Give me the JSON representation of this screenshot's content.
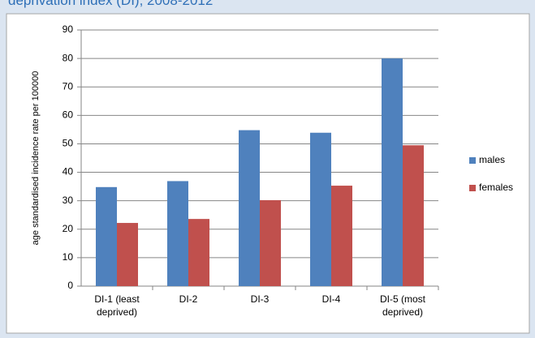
{
  "chart_data": {
    "type": "bar",
    "title": "deprivation index (DI), 2008-2012",
    "y_label": "age standardised incidence rate per 100000",
    "categories": [
      "DI-1 (least\ndeprived)",
      "DI-2",
      "DI-3",
      "DI-4",
      "DI-5 (most\ndeprived)"
    ],
    "series": [
      {
        "name": "males",
        "color": "#4f81bd",
        "values": [
          34.8,
          36.9,
          54.8,
          53.9,
          80
        ]
      },
      {
        "name": "females",
        "color": "#c0504d",
        "values": [
          22.2,
          23.6,
          30.2,
          35.3,
          49.5
        ]
      }
    ],
    "ylim": [
      0,
      90
    ],
    "yticks": [
      0,
      10,
      20,
      30,
      40,
      50,
      60,
      70,
      80,
      90
    ],
    "grid": true,
    "legend": "right"
  }
}
